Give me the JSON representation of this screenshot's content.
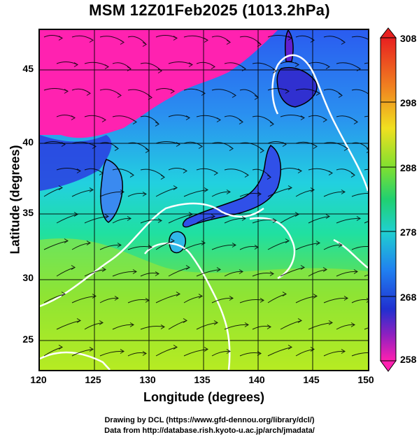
{
  "title": "MSM 12Z01Feb2025 (1013.2hPa)",
  "x_axis": {
    "label": "Longitude (degrees)",
    "ticks": [
      "120",
      "125",
      "130",
      "135",
      "140",
      "145",
      "150"
    ]
  },
  "y_axis": {
    "label": "Latitude  (degrees)",
    "ticks": [
      "25",
      "30",
      "35",
      "40",
      "45"
    ]
  },
  "colorbar": {
    "ticks": [
      "308",
      "298",
      "288",
      "278",
      "268",
      "258"
    ]
  },
  "credits": {
    "line1": "Drawing by DCL (https://www.gfd-dennou.org/library/dcl/)",
    "line2": "Data from http://database.rish.kyoto-u.ac.jp/arch/jmadata/"
  },
  "colors": {
    "cold": "#ff1fa8",
    "mid": "#2ad0d8",
    "warm": "#c8e81a",
    "contour": "#ffffff",
    "land_outline": "#000000"
  }
}
